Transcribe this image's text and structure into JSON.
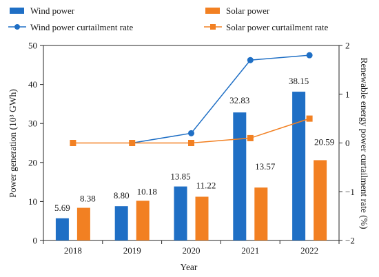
{
  "chart_data": {
    "type": "bar",
    "xlabel": "Year",
    "ylabel": "Power generation (10³ GWh)",
    "y2label": "Renewable energy power curtailment rate (%)",
    "categories": [
      "2018",
      "2019",
      "2020",
      "2021",
      "2022"
    ],
    "ylim": [
      0,
      50
    ],
    "yticks": [
      0,
      10,
      20,
      30,
      40,
      50
    ],
    "y2lim": [
      -2,
      2
    ],
    "y2ticks": [
      -2,
      -1,
      0,
      1,
      2
    ],
    "y2ticklabels": [
      "−2",
      "−1",
      "0",
      "1",
      "2"
    ],
    "grid": false,
    "legend_placement": "top",
    "series": [
      {
        "name": "Wind power",
        "kind": "bar",
        "axis": "left",
        "color": "#1f6fc5",
        "values": [
          5.69,
          8.8,
          13.85,
          32.83,
          38.15
        ],
        "labels": [
          "5.69",
          "8.80",
          "13.85",
          "32.83",
          "38.15"
        ]
      },
      {
        "name": "Solar power",
        "kind": "bar",
        "axis": "left",
        "color": "#f28022",
        "values": [
          8.38,
          10.18,
          11.22,
          13.57,
          20.59
        ],
        "labels": [
          "8.38",
          "10.18",
          "11.22",
          "13.57",
          "20.59"
        ]
      },
      {
        "name": "Wind power curtailment rate",
        "kind": "line",
        "marker": "circle",
        "axis": "right",
        "color": "#1f6fc5",
        "x": [
          "2019",
          "2020",
          "2021",
          "2022"
        ],
        "values": [
          0.0,
          0.2,
          1.7,
          1.8
        ]
      },
      {
        "name": "Solar power curtailment rate",
        "kind": "line",
        "marker": "square",
        "axis": "right",
        "color": "#f28022",
        "x": [
          "2018",
          "2019",
          "2020",
          "2021",
          "2022"
        ],
        "values": [
          0.0,
          0.0,
          0.0,
          0.1,
          0.5
        ]
      }
    ]
  }
}
